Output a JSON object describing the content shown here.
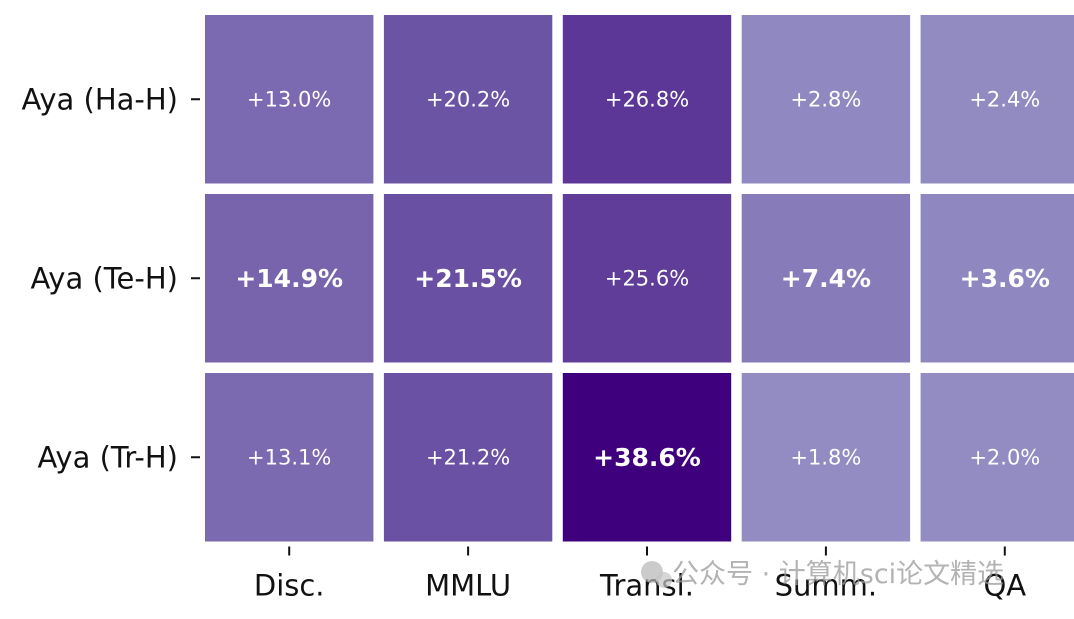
{
  "chart_data": {
    "type": "heatmap",
    "title": "",
    "xlabel": "",
    "ylabel": "",
    "colormap": "Purples",
    "color_range": [
      0,
      38.6
    ],
    "rows": [
      "Aya (Ha-H)",
      "Aya (Te-H)",
      "Aya (Tr-H)"
    ],
    "columns": [
      "Disc.",
      "MMLU",
      "Transl.",
      "Summ.",
      "QA"
    ],
    "values": [
      [
        13.0,
        20.2,
        26.8,
        2.8,
        2.4
      ],
      [
        14.9,
        21.5,
        25.6,
        7.4,
        3.6
      ],
      [
        13.1,
        21.2,
        38.6,
        1.8,
        2.0
      ]
    ],
    "labels": [
      [
        "+13.0%",
        "+20.2%",
        "+26.8%",
        "+2.8%",
        "+2.4%"
      ],
      [
        "+14.9%",
        "+21.5%",
        "+25.6%",
        "+7.4%",
        "+3.6%"
      ],
      [
        "+13.1%",
        "+21.2%",
        "+38.6%",
        "+1.8%",
        "+2.0%"
      ]
    ],
    "bold": [
      [
        false,
        false,
        false,
        false,
        false
      ],
      [
        true,
        true,
        false,
        true,
        true
      ],
      [
        false,
        false,
        true,
        false,
        false
      ]
    ],
    "grid": false,
    "legend": "none"
  },
  "watermark": {
    "text": "公众号 · 计算机sci论文精选"
  }
}
